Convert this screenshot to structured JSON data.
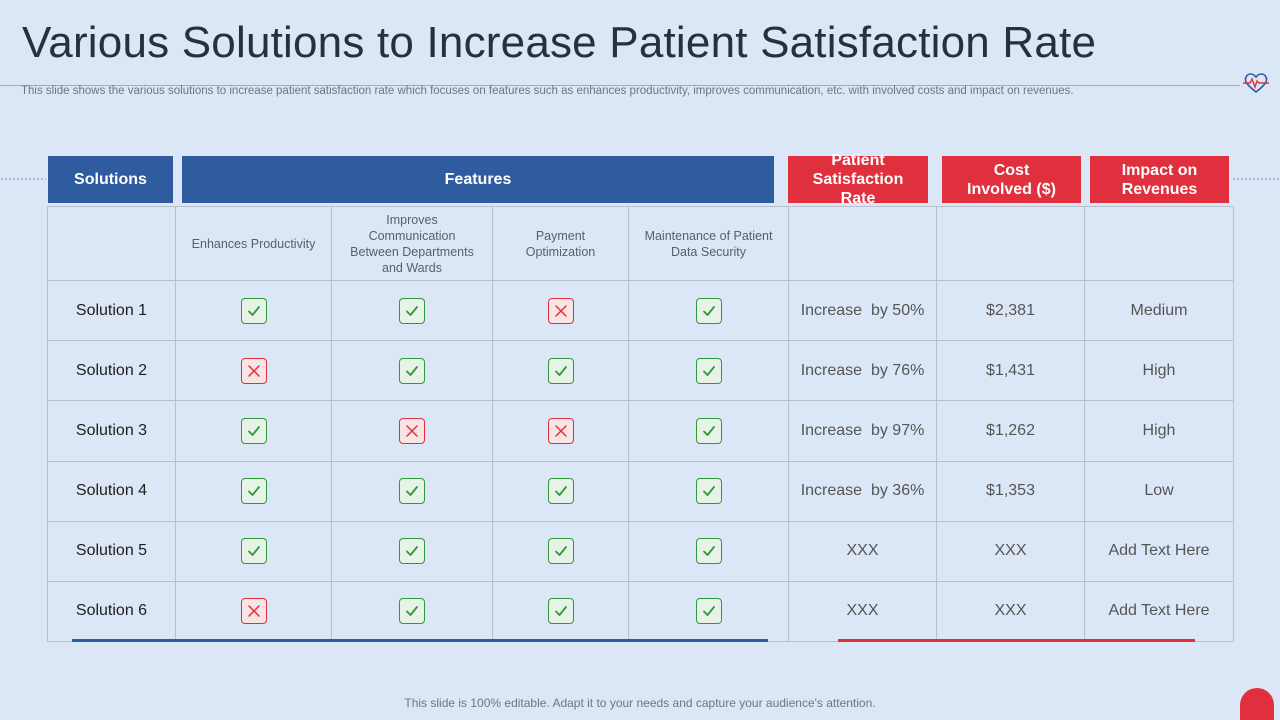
{
  "slide": {
    "title": "Various Solutions to Increase Patient Satisfaction Rate",
    "subtitle": "This slide shows the various solutions to increase patient satisfaction rate which focuses on features such as enhances productivity, improves communication, etc. with involved costs and impact on revenues.",
    "footer": "This slide is 100% editable. Adapt it to your needs and capture your audience's attention."
  },
  "headers": {
    "solutions": "Solutions",
    "features": "Features",
    "satisfaction": "Patient Satisfaction Rate",
    "cost": "Cost Involved ($)",
    "impact": "Impact on Revenues"
  },
  "features": [
    "Enhances Productivity",
    "Improves Communication Between Departments and Wards",
    "Payment Optimization",
    "Maintenance of Patient Data Security"
  ],
  "rows": [
    {
      "name": "Solution 1",
      "checks": [
        true,
        true,
        false,
        true
      ],
      "rate": "Increase  by 50%",
      "cost": "$2,381",
      "impact": "Medium"
    },
    {
      "name": "Solution 2",
      "checks": [
        false,
        true,
        true,
        true
      ],
      "rate": "Increase  by 76%",
      "cost": "$1,431",
      "impact": "High"
    },
    {
      "name": "Solution 3",
      "checks": [
        true,
        false,
        false,
        true
      ],
      "rate": "Increase  by 97%",
      "cost": "$1,262",
      "impact": "High"
    },
    {
      "name": "Solution 4",
      "checks": [
        true,
        true,
        true,
        true
      ],
      "rate": "Increase  by 36%",
      "cost": "$1,353",
      "impact": "Low"
    },
    {
      "name": "Solution 5",
      "checks": [
        true,
        true,
        true,
        true
      ],
      "rate": "XXX",
      "cost": "XXX",
      "impact": "Add Text Here"
    },
    {
      "name": "Solution 6",
      "checks": [
        false,
        true,
        true,
        true
      ],
      "rate": "XXX",
      "cost": "XXX",
      "impact": "Add Text Here"
    }
  ],
  "colors": {
    "blue": "#2f5c9e",
    "red": "#e0303d",
    "green": "#2e9a3a",
    "background": "#dbe7f7"
  }
}
